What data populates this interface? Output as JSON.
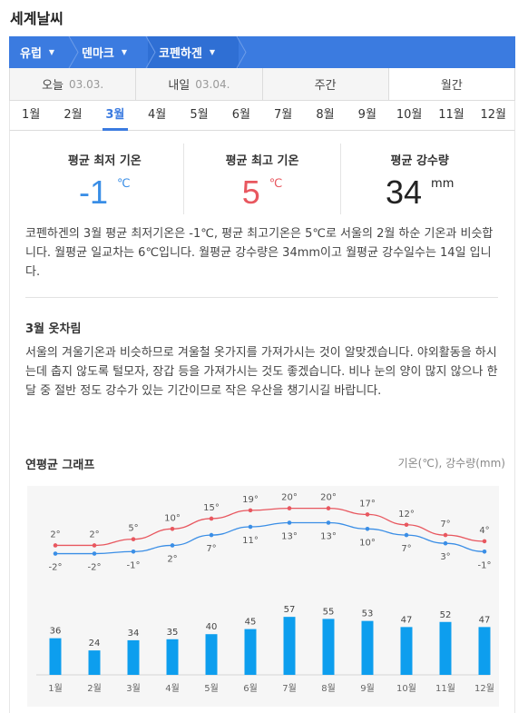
{
  "page_title": "세계날씨",
  "breadcrumb": [
    {
      "label": "유럽"
    },
    {
      "label": "덴마크"
    },
    {
      "label": "코펜하겐"
    }
  ],
  "day_tabs": [
    {
      "label": "오늘",
      "date": "03.03."
    },
    {
      "label": "내일",
      "date": "03.04."
    },
    {
      "label": "주간",
      "date": ""
    },
    {
      "label": "월간",
      "date": ""
    }
  ],
  "month_tabs": [
    "1월",
    "2월",
    "3월",
    "4월",
    "5월",
    "6월",
    "7월",
    "8월",
    "9월",
    "10월",
    "11월",
    "12월"
  ],
  "active_month_index": 2,
  "stats": {
    "min": {
      "label": "평균 최저 기온",
      "value": "-1",
      "unit": "℃"
    },
    "max": {
      "label": "평균 최고 기온",
      "value": "5",
      "unit": "℃"
    },
    "rain": {
      "label": "평균 강수량",
      "value": "34",
      "unit": "mm"
    }
  },
  "description": "코펜하겐의 3월 평균 최저기온은 -1℃, 평균 최고기온은 5℃로 서울의 2월 하순 기온과 비슷합니다. 월평균 일교차는 6℃입니다. 월평균 강수량은 34mm이고 월평균 강수일수는 14일 입니다.",
  "clothes": {
    "title": "3월 옷차림",
    "text": "서울의 겨울기온과 비슷하므로 겨울철 옷가지를 가져가시는 것이 알맞겠습니다. 야외활동을 하시는데 춥지 않도록 털모자, 장갑 등을 가져가시는 것도 좋겠습니다. 비나 눈의 양이 많지 않으나 한 달 중 절반 정도 강수가 있는 기간이므로 작은 우산을 챙기시길 바랍니다."
  },
  "graph": {
    "title": "연평균 그래프",
    "legend": "기온(℃), 강수량(mm)"
  },
  "colors": {
    "accent": "#3b7be0",
    "high": "#e8575f",
    "low": "#3a8ee6",
    "bar": "#0d9eee"
  },
  "chart_data": {
    "type": "bar",
    "categories": [
      "1월",
      "2월",
      "3월",
      "4월",
      "5월",
      "6월",
      "7월",
      "8월",
      "9월",
      "10월",
      "11월",
      "12월"
    ],
    "series": [
      {
        "values": [
          2,
          2,
          5,
          10,
          15,
          19,
          20,
          20,
          17,
          12,
          7,
          4
        ],
        "type": "line",
        "color": "#e8575f"
      },
      {
        "values": [
          -2,
          -2,
          -1,
          2,
          7,
          11,
          13,
          13,
          10,
          7,
          3,
          -1
        ],
        "type": "line",
        "color": "#3a8ee6"
      },
      {
        "values": [
          36,
          24,
          34,
          35,
          40,
          45,
          57,
          55,
          53,
          47,
          52,
          47
        ],
        "type": "bar",
        "color": "#0d9eee"
      }
    ],
    "title": "",
    "xlabel": "",
    "ylabel": "",
    "grid": false
  }
}
